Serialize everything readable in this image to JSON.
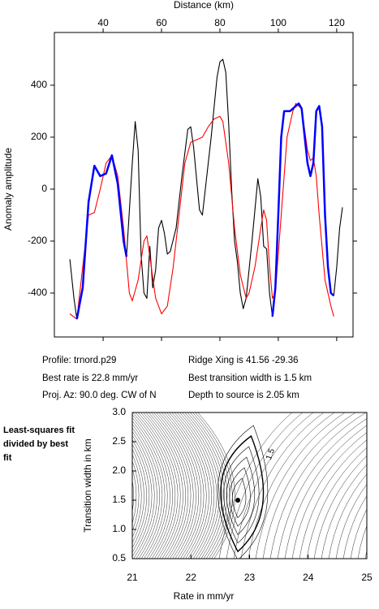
{
  "chart_data": [
    {
      "type": "line",
      "xlabel": "Distance (km)",
      "ylabel": "Anomaly amplitude",
      "xlim": [
        23.3,
        125.6
      ],
      "xticks": [
        40,
        60,
        80,
        100,
        120
      ],
      "ylim": [
        -569,
        603
      ],
      "yticks": [
        -400,
        -200,
        0,
        200,
        400
      ],
      "series": [
        {
          "name": "observed",
          "color": "#000000",
          "x": [
            28.6,
            30,
            31,
            33,
            35,
            37,
            39,
            41,
            43,
            45,
            47,
            48,
            50,
            51,
            52,
            53,
            54,
            55,
            56,
            57,
            58,
            59,
            60,
            61,
            62,
            63,
            65,
            67,
            69,
            70,
            71,
            73,
            74,
            75,
            77,
            79,
            80,
            81,
            82,
            83,
            84,
            85,
            86,
            87,
            88,
            89,
            91,
            93,
            94,
            95,
            96,
            97,
            98,
            99,
            100,
            101,
            102,
            104,
            106,
            107,
            108,
            110,
            111,
            112,
            113,
            114,
            115,
            116,
            117,
            118,
            119,
            120,
            121,
            122
          ],
          "values": [
            -270,
            -420,
            -500,
            -380,
            -50,
            90,
            50,
            60,
            130,
            20,
            -200,
            -260,
            100,
            260,
            150,
            -250,
            -400,
            -420,
            -220,
            -380,
            -310,
            -150,
            -120,
            -170,
            -250,
            -240,
            -150,
            50,
            230,
            240,
            160,
            -80,
            -100,
            0,
            200,
            430,
            490,
            500,
            450,
            250,
            0,
            -200,
            -280,
            -400,
            -460,
            -420,
            -200,
            40,
            -30,
            -220,
            -230,
            -400,
            -490,
            -380,
            -100,
            200,
            300,
            300,
            320,
            330,
            310,
            100,
            50,
            100,
            300,
            320,
            240,
            -100,
            -300,
            -400,
            -410,
            -300,
            -150,
            -70
          ]
        },
        {
          "name": "model",
          "color": "#ff0000",
          "x": [
            28.6,
            31,
            33,
            35,
            37,
            39,
            41,
            43,
            45,
            47,
            49,
            50,
            52,
            54,
            55,
            56,
            58,
            60,
            62,
            64,
            66,
            68,
            70,
            72,
            74,
            76,
            78,
            80,
            81,
            83,
            85,
            87,
            89,
            90,
            92,
            94,
            95,
            96,
            97,
            98,
            99,
            101,
            103,
            105,
            106,
            108,
            110,
            111,
            112,
            113,
            114,
            116,
            118,
            119
          ],
          "values": [
            -480,
            -500,
            -300,
            -100,
            -90,
            0,
            100,
            130,
            50,
            -150,
            -400,
            -430,
            -350,
            -200,
            -180,
            -260,
            -420,
            -480,
            -450,
            -300,
            -100,
            100,
            180,
            190,
            200,
            240,
            270,
            280,
            260,
            100,
            -150,
            -330,
            -420,
            -400,
            -300,
            -150,
            -80,
            -120,
            -300,
            -420,
            -400,
            -100,
            200,
            300,
            330,
            310,
            150,
            110,
            120,
            50,
            -100,
            -350,
            -450,
            -490
          ]
        },
        {
          "name": "fit window",
          "color": "#0000ff",
          "x": [
            31,
            33,
            35,
            37,
            39,
            41,
            43,
            45,
            47,
            48,
            null,
            98,
            99,
            100,
            101,
            102,
            104,
            106,
            107,
            108,
            110,
            111,
            112,
            113,
            114,
            115,
            116,
            117,
            118,
            119
          ],
          "values": [
            -500,
            -380,
            -50,
            90,
            50,
            60,
            130,
            20,
            -200,
            -260,
            null,
            -490,
            -380,
            -100,
            200,
            300,
            300,
            320,
            330,
            310,
            100,
            50,
            100,
            300,
            320,
            240,
            -100,
            -300,
            -400,
            -410
          ]
        }
      ],
      "info": [
        "Profile: trnord.p29",
        "Ridge Xing is 41.56 -29.36",
        "Best rate is 22.8 mm/yr",
        "Best transition width is 1.5 km",
        "Proj. Az: 90.0 deg. CW of N",
        "Depth to source is   2.05 km"
      ]
    },
    {
      "type": "contour",
      "title": "Least-squares fit divided by best fit",
      "xlabel": "Rate in mm/yr",
      "ylabel": "Transition width in km",
      "xlim": [
        21,
        25
      ],
      "xticks": [
        21,
        22,
        23,
        24,
        25
      ],
      "ylim": [
        0.5,
        3.0
      ],
      "yticks": [
        0.5,
        {
          "value": 1.0,
          "label": "1.0"
        },
        1.5,
        {
          "value": 2.0,
          "label": "2.0"
        },
        2.5,
        {
          "value": 3.0,
          "label": "3.0"
        }
      ],
      "contour_label": "1.5",
      "best": {
        "x": 22.8,
        "y": 1.5
      }
    }
  ]
}
